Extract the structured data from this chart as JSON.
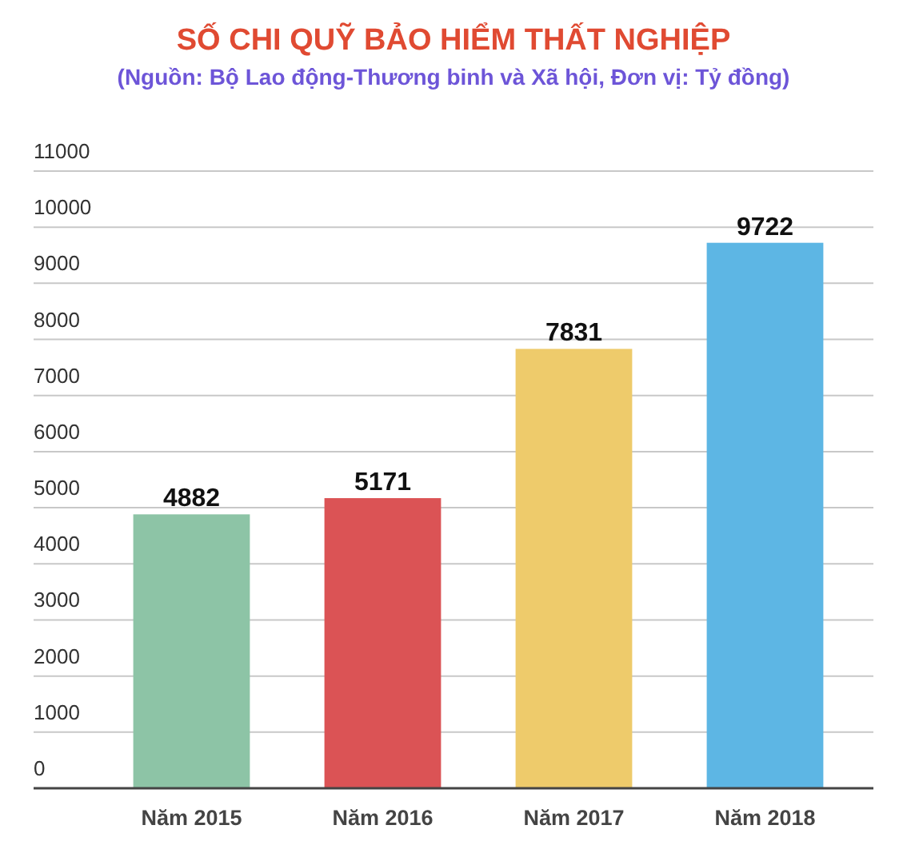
{
  "chart_data": {
    "type": "bar",
    "title": "SỐ CHI QUỸ BẢO HIỂM THẤT NGHIỆP",
    "subtitle": "(Nguồn:  Bộ Lao động-Thương binh và Xã hội, Đơn vị: Tỷ đồng)",
    "categories": [
      "Năm 2015",
      "Năm 2016",
      "Năm 2017",
      "Năm 2018"
    ],
    "values": [
      4882,
      5171,
      7831,
      9722
    ],
    "colors": [
      "#8dc4a6",
      "#db5355",
      "#eecb6b",
      "#5db6e4"
    ],
    "ylim": [
      0,
      11000
    ],
    "yticks": [
      0,
      1000,
      2000,
      3000,
      4000,
      5000,
      6000,
      7000,
      8000,
      9000,
      10000,
      11000
    ],
    "grid": "y",
    "data_labels": true
  }
}
